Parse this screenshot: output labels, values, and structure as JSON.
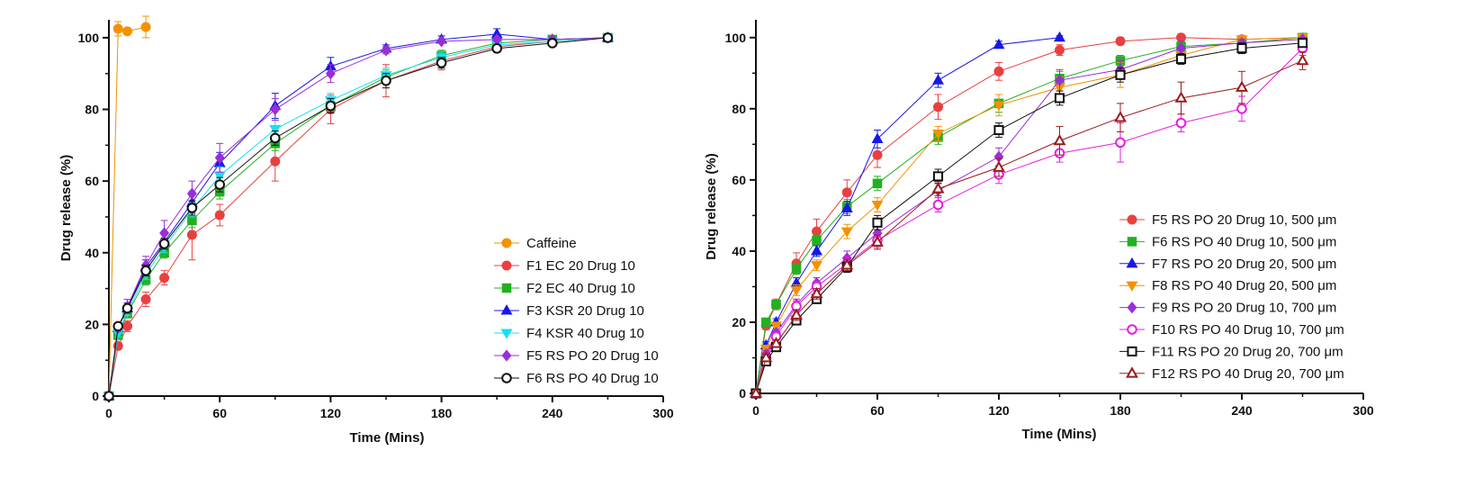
{
  "chart_data": [
    {
      "type": "line",
      "xlabel": "Time (Mins)",
      "ylabel": "Drug release (%)",
      "xlim": [
        0,
        300
      ],
      "ylim": [
        0,
        105
      ],
      "xticks": [
        "0",
        "60",
        "120",
        "180",
        "240",
        "300"
      ],
      "yticks": [
        "0",
        "20",
        "40",
        "60",
        "80",
        "100"
      ],
      "legend_position": "bottom-right",
      "series": [
        {
          "name": "Caffeine",
          "color": "#f39200",
          "marker": "circle-filled",
          "x": [
            0,
            5,
            10,
            20
          ],
          "y": [
            0,
            102.5,
            101.8,
            103.0
          ],
          "err": [
            0,
            2.0,
            0,
            3.0
          ]
        },
        {
          "name": "F1  EC 20 Drug 10",
          "color": "#e84040",
          "marker": "circle-filled",
          "x": [
            0,
            5,
            10,
            20,
            30,
            45,
            60,
            90,
            120,
            150,
            180,
            210,
            240,
            270
          ],
          "y": [
            0,
            14.0,
            19.5,
            27.0,
            33.0,
            45.0,
            50.5,
            65.5,
            80.0,
            88.0,
            93.5,
            97.5,
            99.0,
            100.0
          ],
          "err": [
            0,
            1.0,
            1.5,
            2.0,
            2.0,
            7.0,
            3.0,
            5.5,
            4.0,
            4.5,
            2.5,
            1.5,
            1.0,
            0
          ]
        },
        {
          "name": "F2  EC 40 Drug 10",
          "color": "#22b022",
          "marker": "square-filled",
          "x": [
            0,
            5,
            10,
            20,
            30,
            45,
            60,
            90,
            120,
            150,
            180,
            210,
            240,
            270
          ],
          "y": [
            0,
            17.0,
            23.0,
            32.5,
            40.0,
            49.0,
            57.0,
            70.5,
            81.0,
            89.0,
            95.0,
            98.5,
            99.5,
            100.0
          ],
          "err": [
            0,
            1.0,
            1.0,
            1.5,
            1.5,
            2.0,
            2.0,
            2.0,
            2.0,
            2.0,
            1.5,
            1.0,
            0.5,
            0
          ]
        },
        {
          "name": "F3  KSR 20 Drug 10",
          "color": "#1818e6",
          "marker": "triangle-filled",
          "x": [
            0,
            5,
            10,
            20,
            30,
            45,
            60,
            90,
            120,
            150,
            180,
            210,
            240,
            270
          ],
          "y": [
            0,
            19.0,
            24.5,
            36.0,
            43.0,
            54.0,
            65.0,
            81.0,
            92.0,
            97.0,
            99.5,
            101.0,
            99.5,
            100.0
          ],
          "err": [
            0,
            1.0,
            1.5,
            2.0,
            2.0,
            3.0,
            3.0,
            3.5,
            2.5,
            1.0,
            1.0,
            1.5,
            0.5,
            0
          ]
        },
        {
          "name": "F4  KSR 40 Drug 10",
          "color": "#18e0f0",
          "marker": "triangle-down-filled",
          "x": [
            0,
            5,
            10,
            20,
            30,
            45,
            60,
            90,
            120,
            150,
            180,
            210,
            240,
            270
          ],
          "y": [
            0,
            17.5,
            23.5,
            34.0,
            41.5,
            52.0,
            61.5,
            74.5,
            82.5,
            89.5,
            94.5,
            98.0,
            99.0,
            100.0
          ],
          "err": [
            0,
            1.0,
            1.0,
            1.5,
            1.5,
            2.0,
            2.5,
            2.5,
            2.0,
            2.0,
            1.5,
            1.0,
            0.5,
            0
          ]
        },
        {
          "name": "F5  RS PO 20 Drug 10",
          "color": "#9a2ed6",
          "marker": "diamond-filled",
          "x": [
            0,
            5,
            10,
            20,
            30,
            45,
            60,
            90,
            120,
            150,
            180,
            210,
            240,
            270
          ],
          "y": [
            0,
            19.0,
            25.0,
            36.5,
            45.5,
            56.5,
            66.5,
            80.0,
            90.0,
            96.5,
            99.0,
            99.5,
            99.5,
            100.0
          ],
          "err": [
            0,
            1.0,
            2.0,
            2.5,
            3.5,
            3.5,
            4.0,
            3.0,
            2.5,
            1.0,
            0.5,
            0.5,
            0.5,
            0
          ]
        },
        {
          "name": "F6  RS PO 40 Drug 10",
          "color": "#111111",
          "marker": "circle-open",
          "x": [
            0,
            5,
            10,
            20,
            30,
            45,
            60,
            90,
            120,
            150,
            180,
            210,
            240,
            270
          ],
          "y": [
            0,
            19.5,
            24.5,
            35.0,
            42.5,
            52.5,
            59.0,
            72.0,
            81.0,
            88.0,
            93.0,
            97.0,
            98.5,
            100.0
          ],
          "err": [
            0,
            1.0,
            1.0,
            1.5,
            1.5,
            2.0,
            2.0,
            2.0,
            2.0,
            2.0,
            1.5,
            1.0,
            0.5,
            0
          ]
        }
      ]
    },
    {
      "type": "line",
      "xlabel": "Time (Mins)",
      "ylabel": "Drug release (%)",
      "xlim": [
        0,
        300
      ],
      "ylim": [
        0,
        105
      ],
      "xticks": [
        "0",
        "60",
        "120",
        "180",
        "240",
        "300"
      ],
      "yticks": [
        "0",
        "20",
        "40",
        "60",
        "80",
        "100"
      ],
      "legend_position": "bottom-right",
      "series": [
        {
          "name": "F5  RS PO 20 Drug 10, 500 μm",
          "color": "#e84040",
          "marker": "circle-filled",
          "x": [
            0,
            5,
            10,
            20,
            30,
            45,
            60,
            90,
            120,
            150,
            180,
            210,
            240,
            270
          ],
          "y": [
            0,
            19.0,
            25.0,
            36.5,
            45.5,
            56.5,
            67.0,
            80.5,
            90.5,
            96.5,
            99.0,
            100.0,
            99.5,
            100.0
          ],
          "err": [
            0,
            1.0,
            1.5,
            3.0,
            3.5,
            3.5,
            3.5,
            3.5,
            2.5,
            1.5,
            1.0,
            1.0,
            0.5,
            0
          ]
        },
        {
          "name": "F6  RS PO 40 Drug 10, 500 μm",
          "color": "#22b022",
          "marker": "square-filled",
          "x": [
            0,
            5,
            10,
            20,
            30,
            45,
            60,
            90,
            120,
            150,
            180,
            210,
            240,
            270
          ],
          "y": [
            0,
            20.0,
            25.0,
            35.0,
            43.0,
            52.5,
            59.0,
            72.0,
            81.5,
            88.5,
            93.5,
            97.5,
            98.5,
            100.0
          ],
          "err": [
            0,
            1.0,
            1.0,
            1.5,
            1.5,
            2.0,
            2.0,
            2.0,
            2.5,
            2.0,
            1.5,
            1.0,
            0.5,
            0
          ]
        },
        {
          "name": "F7  RS PO 20 Drug 20, 500 μm",
          "color": "#1818e6",
          "marker": "triangle-filled",
          "x": [
            0,
            5,
            10,
            20,
            30,
            45,
            60,
            90,
            120,
            150
          ],
          "y": [
            0,
            13.5,
            20.0,
            31.0,
            40.0,
            52.0,
            71.5,
            88.0,
            98.0,
            100.0
          ],
          "err": [
            0,
            1.0,
            1.0,
            1.5,
            1.5,
            2.0,
            2.5,
            2.0,
            1.0,
            0.5
          ]
        },
        {
          "name": "F8  RS PO 40 Drug 20, 500 μm",
          "color": "#f39200",
          "marker": "triangle-down-filled",
          "x": [
            0,
            5,
            10,
            20,
            30,
            45,
            60,
            90,
            120,
            150,
            180,
            210,
            240,
            270
          ],
          "y": [
            0,
            12.5,
            19.0,
            29.0,
            36.0,
            45.5,
            53.0,
            73.0,
            81.0,
            86.0,
            89.5,
            95.0,
            99.5,
            100.0
          ],
          "err": [
            0,
            1.0,
            1.0,
            1.5,
            1.5,
            2.0,
            2.0,
            2.0,
            3.0,
            3.0,
            3.5,
            2.0,
            1.0,
            0
          ]
        },
        {
          "name": "F9  RS PO 20 Drug 10, 700 μm",
          "color": "#9a2ed6",
          "marker": "diamond-filled",
          "x": [
            0,
            5,
            10,
            20,
            30,
            45,
            60,
            90,
            120,
            150,
            180,
            210,
            240,
            270
          ],
          "y": [
            0,
            11.0,
            17.0,
            25.0,
            31.0,
            38.0,
            45.0,
            57.0,
            66.5,
            88.0,
            91.0,
            97.0,
            98.5,
            99.5
          ],
          "err": [
            0,
            1.0,
            1.0,
            1.5,
            1.5,
            2.0,
            2.0,
            2.0,
            2.5,
            3.0,
            2.5,
            2.0,
            1.0,
            0.5
          ]
        },
        {
          "name": "F10  RS PO 40 Drug 10, 700 μm",
          "color": "#e81ee0",
          "marker": "circle-open",
          "x": [
            0,
            5,
            10,
            20,
            30,
            45,
            60,
            90,
            120,
            150,
            180,
            210,
            240,
            270
          ],
          "y": [
            0,
            10.0,
            16.0,
            24.5,
            30.0,
            36.5,
            43.0,
            53.0,
            61.5,
            67.5,
            70.5,
            76.0,
            80.0,
            97.0
          ],
          "err": [
            0,
            1.0,
            1.0,
            1.5,
            1.5,
            2.0,
            2.0,
            2.0,
            2.5,
            2.5,
            5.5,
            2.5,
            3.5,
            2.0
          ]
        },
        {
          "name": "F11  RS PO 20 Drug 20, 700 μm",
          "color": "#111111",
          "marker": "square-open",
          "x": [
            0,
            5,
            10,
            20,
            30,
            45,
            60,
            90,
            120,
            150,
            180,
            210,
            240,
            270
          ],
          "y": [
            0,
            9.0,
            13.0,
            20.5,
            26.5,
            35.5,
            48.0,
            61.0,
            74.0,
            83.0,
            89.5,
            94.0,
            97.0,
            98.5
          ],
          "err": [
            0,
            1.0,
            1.0,
            1.0,
            1.0,
            1.5,
            2.0,
            2.0,
            2.0,
            2.0,
            2.0,
            1.5,
            1.5,
            1.0
          ]
        },
        {
          "name": "F12  RS PO 40 Drug 20, 700 μm",
          "color": "#9b1b1b",
          "marker": "triangle-open",
          "x": [
            0,
            5,
            10,
            20,
            30,
            45,
            60,
            90,
            120,
            150,
            180,
            210,
            240,
            270
          ],
          "y": [
            0,
            10.0,
            14.0,
            22.0,
            28.0,
            36.0,
            42.5,
            57.5,
            63.5,
            71.0,
            77.5,
            83.0,
            86.0,
            93.5
          ],
          "err": [
            0,
            1.0,
            1.0,
            1.5,
            1.5,
            1.5,
            2.0,
            2.0,
            2.5,
            4.0,
            4.0,
            4.5,
            4.5,
            2.5
          ]
        }
      ]
    }
  ]
}
